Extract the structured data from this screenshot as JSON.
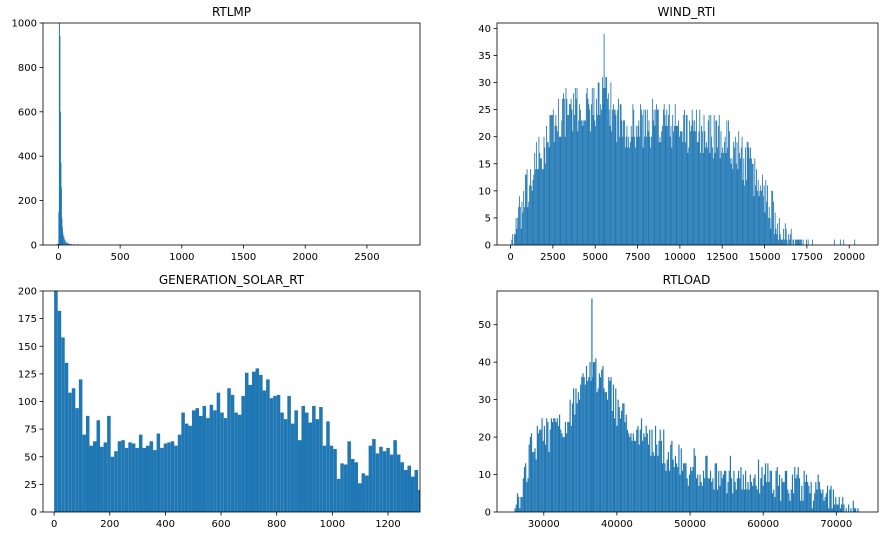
{
  "chart_data": [
    {
      "type": "bar",
      "title": "RTLMP",
      "xlim": [
        -125,
        2930
      ],
      "ylim": [
        0,
        1000
      ],
      "xticks": [
        0,
        500,
        1000,
        1500,
        2000,
        2500
      ],
      "yticks": [
        0,
        200,
        400,
        600,
        800,
        1000
      ],
      "bar_color": "#1f77b4",
      "bin_width": 8,
      "bins": [
        [
          -24,
          2
        ],
        [
          -16,
          3
        ],
        [
          -8,
          6
        ],
        [
          0,
          150
        ],
        [
          4,
          1000
        ],
        [
          8,
          940
        ],
        [
          12,
          600
        ],
        [
          16,
          370
        ],
        [
          20,
          260
        ],
        [
          24,
          120
        ],
        [
          28,
          80
        ],
        [
          32,
          55
        ],
        [
          40,
          40
        ],
        [
          48,
          25
        ],
        [
          56,
          15
        ],
        [
          64,
          10
        ],
        [
          72,
          8
        ],
        [
          80,
          6
        ],
        [
          90,
          5
        ],
        [
          100,
          4
        ],
        [
          120,
          4
        ],
        [
          140,
          3
        ],
        [
          160,
          3
        ],
        [
          180,
          2
        ],
        [
          200,
          2
        ],
        [
          220,
          2
        ],
        [
          250,
          2
        ],
        [
          280,
          1
        ],
        [
          320,
          1
        ],
        [
          400,
          1
        ]
      ]
    },
    {
      "type": "bar",
      "title": "WIND_RTI",
      "xlim": [
        -800,
        21700
      ],
      "ylim": [
        0,
        41
      ],
      "xticks": [
        0,
        2500,
        5000,
        7500,
        10000,
        12500,
        15000,
        17500,
        20000
      ],
      "yticks": [
        0,
        5,
        10,
        15,
        20,
        25,
        30,
        35,
        40
      ],
      "bar_color": "#1f77b4",
      "bin_width": 50,
      "curve": [
        [
          0,
          0
        ],
        [
          200,
          2
        ],
        [
          500,
          5
        ],
        [
          800,
          8
        ],
        [
          1200,
          12
        ],
        [
          1600,
          15
        ],
        [
          2000,
          18
        ],
        [
          2500,
          22
        ],
        [
          3000,
          24
        ],
        [
          3500,
          25
        ],
        [
          4000,
          25
        ],
        [
          4500,
          25
        ],
        [
          5000,
          26
        ],
        [
          5500,
          27
        ],
        [
          6000,
          25
        ],
        [
          6500,
          23
        ],
        [
          7000,
          22
        ],
        [
          7500,
          22
        ],
        [
          8000,
          22
        ],
        [
          8500,
          23
        ],
        [
          9000,
          23
        ],
        [
          9500,
          22
        ],
        [
          10000,
          22
        ],
        [
          10500,
          21
        ],
        [
          11000,
          21
        ],
        [
          11500,
          21
        ],
        [
          12000,
          20
        ],
        [
          12500,
          20
        ],
        [
          13000,
          19
        ],
        [
          13500,
          17
        ],
        [
          14000,
          15
        ],
        [
          14500,
          12
        ],
        [
          15000,
          10
        ],
        [
          15500,
          6
        ],
        [
          16000,
          3
        ],
        [
          16500,
          1.5
        ],
        [
          17000,
          0.7
        ],
        [
          17500,
          0.3
        ],
        [
          18000,
          0.1
        ],
        [
          20500,
          0.05
        ]
      ],
      "noise": 4.5,
      "peak": [
        5500,
        39
      ]
    },
    {
      "type": "bar",
      "title": "GENERATION_SOLAR_RT",
      "xlim": [
        -40,
        1315
      ],
      "ylim": [
        0,
        200
      ],
      "xticks": [
        0,
        200,
        400,
        600,
        800,
        1000,
        1200
      ],
      "yticks": [
        0,
        25,
        50,
        75,
        100,
        125,
        150,
        175,
        200
      ],
      "bar_color": "#1f77b4",
      "bin_width": 12.7,
      "values": [
        200,
        182,
        158,
        135,
        108,
        112,
        94,
        120,
        70,
        87,
        60,
        64,
        83,
        59,
        63,
        87,
        50,
        55,
        64,
        65,
        58,
        63,
        62,
        58,
        70,
        58,
        60,
        64,
        56,
        71,
        58,
        62,
        63,
        64,
        60,
        70,
        90,
        80,
        78,
        92,
        94,
        87,
        96,
        85,
        97,
        92,
        108,
        90,
        85,
        112,
        106,
        90,
        88,
        105,
        126,
        115,
        127,
        130,
        124,
        110,
        120,
        103,
        105,
        106,
        90,
        84,
        105,
        80,
        92,
        65,
        96,
        90,
        81,
        96,
        84,
        95,
        60,
        82,
        60,
        57,
        30,
        44,
        43,
        64,
        48,
        45,
        26,
        35,
        33,
        60,
        66,
        53,
        59,
        55,
        58,
        52,
        65,
        52,
        45,
        38,
        42,
        32,
        38,
        20,
        10,
        14
      ]
    },
    {
      "type": "bar",
      "title": "RTLOAD",
      "xlim": [
        23600,
        75700
      ],
      "ylim": [
        0,
        59
      ],
      "xticks": [
        30000,
        40000,
        50000,
        60000,
        70000
      ],
      "yticks": [
        0,
        10,
        20,
        30,
        40,
        50
      ],
      "bar_color": "#1f77b4",
      "bin_width": 160,
      "curve": [
        [
          26000,
          0
        ],
        [
          26400,
          3
        ],
        [
          27000,
          8
        ],
        [
          28000,
          15
        ],
        [
          29000,
          19
        ],
        [
          30000,
          21
        ],
        [
          31000,
          21
        ],
        [
          32000,
          22
        ],
        [
          33000,
          25
        ],
        [
          34000,
          28
        ],
        [
          35000,
          33
        ],
        [
          36000,
          38
        ],
        [
          37000,
          37
        ],
        [
          38000,
          35
        ],
        [
          39000,
          32
        ],
        [
          40000,
          28
        ],
        [
          41000,
          26
        ],
        [
          42000,
          24
        ],
        [
          43000,
          22
        ],
        [
          44000,
          20
        ],
        [
          45000,
          18
        ],
        [
          46000,
          17
        ],
        [
          47000,
          16
        ],
        [
          48000,
          14
        ],
        [
          49000,
          13
        ],
        [
          50000,
          12
        ],
        [
          52000,
          11
        ],
        [
          54000,
          10
        ],
        [
          56000,
          10
        ],
        [
          58000,
          9
        ],
        [
          60000,
          9
        ],
        [
          62000,
          8
        ],
        [
          64000,
          8
        ],
        [
          66000,
          7
        ],
        [
          68000,
          5
        ],
        [
          70000,
          3
        ],
        [
          71000,
          2
        ],
        [
          72000,
          1.5
        ],
        [
          73200,
          0.5
        ]
      ],
      "noise": 5,
      "peak": [
        36500,
        57
      ]
    }
  ]
}
